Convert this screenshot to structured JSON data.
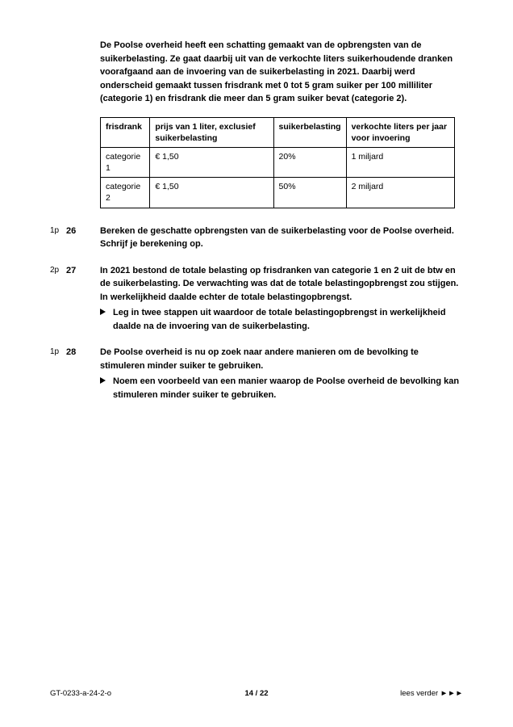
{
  "intro": "De Poolse overheid heeft een schatting gemaakt van de opbrengsten van de suikerbelasting. Ze gaat daarbij uit van de verkochte liters suikerhoudende dranken voorafgaand aan de invoering van de suikerbelasting in 2021. Daarbij werd onderscheid gemaakt tussen frisdrank met 0 tot 5 gram suiker per 100 milliliter (categorie 1) en frisdrank die meer dan 5 gram suiker bevat (categorie 2).",
  "table": {
    "headers": [
      "frisdrank",
      "prijs van 1 liter, exclusief suikerbelasting",
      "suikerbelasting",
      "verkochte liters per jaar voor invoering"
    ],
    "rows": [
      [
        "categorie 1",
        "€ 1,50",
        "20%",
        "1 miljard"
      ],
      [
        "categorie 2",
        "€ 1,50",
        "50%",
        "2 miljard"
      ]
    ]
  },
  "questions": [
    {
      "pts": "1p",
      "num": "26",
      "body": "Bereken de geschatte opbrengsten van de suikerbelasting voor de Poolse overheid. Schrijf je berekening op.",
      "subs": []
    },
    {
      "pts": "2p",
      "num": "27",
      "body": "In 2021 bestond de totale belasting op frisdranken van categorie 1 en 2 uit de btw en de suikerbelasting. De verwachting was dat de totale belastingopbrengst zou stijgen.\nIn werkelijkheid daalde echter de totale belastingopbrengst.",
      "subs": [
        "Leg in twee stappen uit waardoor de totale belastingopbrengst in werkelijkheid daalde na de invoering van de suikerbelasting."
      ]
    },
    {
      "pts": "1p",
      "num": "28",
      "body": "De Poolse overheid is nu op zoek naar andere manieren om de bevolking te stimuleren minder suiker te gebruiken.",
      "subs": [
        "Noem een voorbeeld van een manier waarop de Poolse overheid de bevolking kan stimuleren minder suiker te gebruiken."
      ]
    }
  ],
  "footer": {
    "left": "GT-0233-a-24-2-o",
    "center": "14 / 22",
    "right": "lees verder ►►►"
  }
}
